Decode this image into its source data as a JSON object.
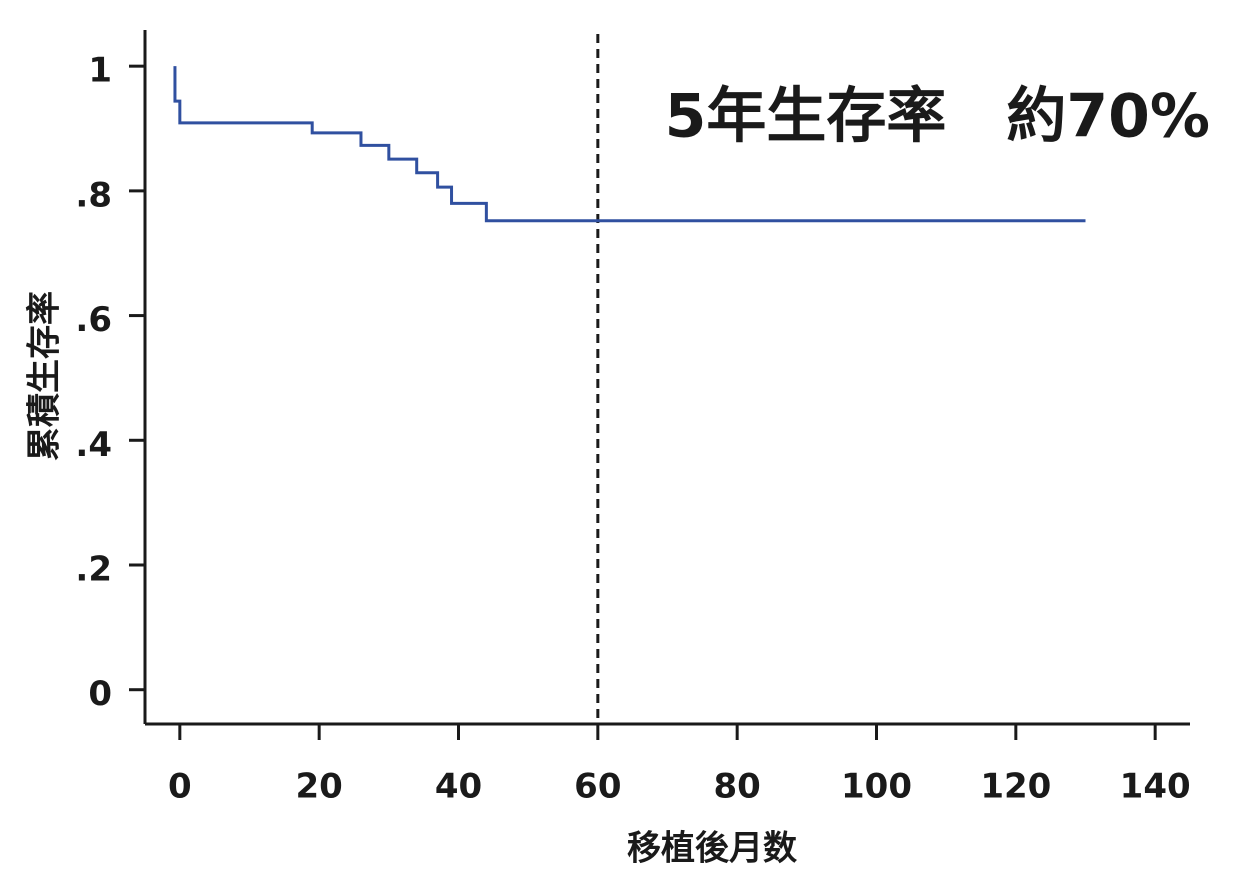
{
  "chart_data": {
    "type": "step",
    "annotation": "5年生存率　約70%",
    "x_label": "移植後月数",
    "y_label": "累積生存率",
    "series": [
      {
        "color": "#3050a0",
        "x": [
          -0.7,
          -0.7,
          0,
          19,
          26,
          30,
          34,
          37,
          39,
          44,
          130
        ],
        "values": [
          1,
          0.944,
          0.909,
          0.893,
          0.873,
          0.851,
          0.829,
          0.806,
          0.78,
          0.752,
          0.752
        ]
      }
    ],
    "vline": 60,
    "xlim": [
      -5,
      145
    ],
    "ylim": [
      -0.055,
      1.058
    ],
    "xticks": [
      0,
      20,
      40,
      60,
      80,
      100,
      120,
      140
    ],
    "yticks": [
      0,
      {
        "value": 0.2,
        "label": ".2"
      },
      {
        "value": 0.4,
        "label": ".4"
      },
      {
        "value": 0.6,
        "label": ".6"
      },
      {
        "value": 0.8,
        "label": ".8"
      },
      1
    ]
  }
}
